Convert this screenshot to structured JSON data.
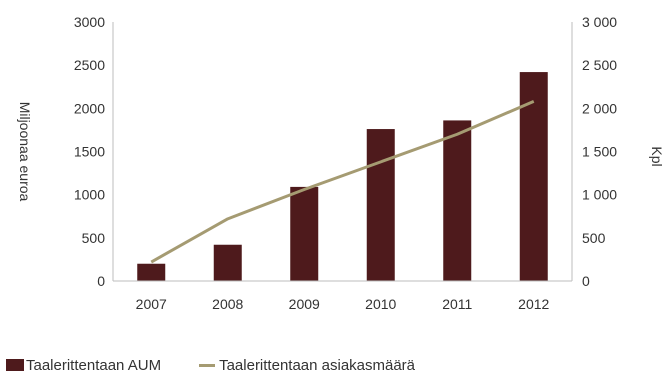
{
  "chart_data": {
    "type": "bar",
    "categories": [
      "2007",
      "2008",
      "2009",
      "2010",
      "2011",
      "2012"
    ],
    "series": [
      {
        "name": "Taalerittentaan AUM",
        "type": "bar",
        "axis": "left",
        "color": "#4e1a1c",
        "values": [
          200,
          420,
          1090,
          1760,
          1860,
          2420
        ]
      },
      {
        "name": "Taalerittentaan asiakasmäärä",
        "type": "line",
        "axis": "right",
        "color": "#a59b72",
        "values": [
          220,
          720,
          1060,
          1380,
          1700,
          2080
        ]
      }
    ],
    "ylabel": "Miljoonaa euroa",
    "y2label": "Kpl",
    "ylim": [
      0,
      3000
    ],
    "y2lim": [
      0,
      3000
    ],
    "yticks": [
      "0",
      "500",
      "1000",
      "1500",
      "2000",
      "2500",
      "3000"
    ],
    "y2ticks": [
      "0",
      "500",
      "1 000",
      "1 500",
      "2 000",
      "2 500",
      "3 000"
    ],
    "grid": false,
    "legend_position": "bottom"
  }
}
